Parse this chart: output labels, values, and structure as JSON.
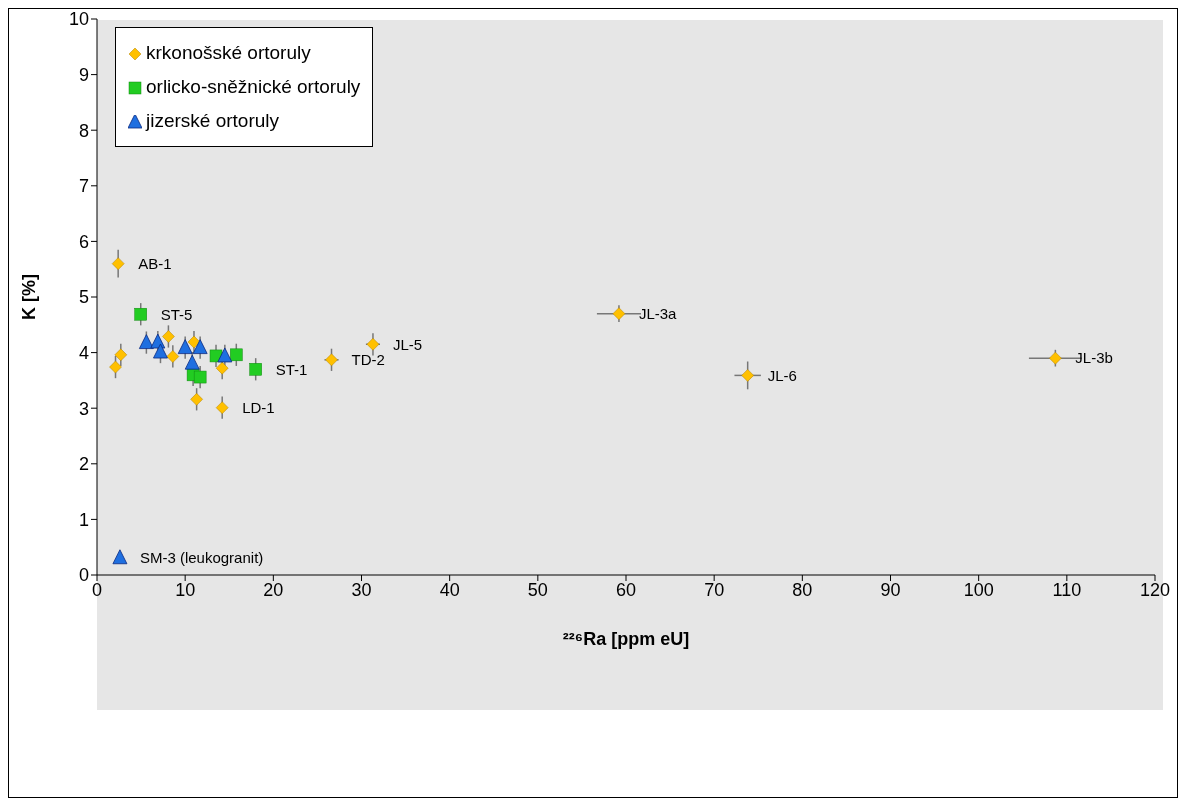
{
  "chart_data": {
    "type": "scatter",
    "xlabel": "²²⁶Ra [ppm eU]",
    "ylabel": "K [%]",
    "xlim": [
      0,
      120
    ],
    "xticks": [
      0,
      10,
      20,
      30,
      40,
      50,
      60,
      70,
      80,
      90,
      100,
      110,
      120
    ],
    "ylim": [
      0,
      10
    ],
    "yticks": [
      0,
      1,
      2,
      3,
      4,
      5,
      6,
      7,
      8,
      9,
      10
    ],
    "grid": false,
    "legend": "top left",
    "series": [
      {
        "name": "krkonošské ortoruly",
        "color": "#ffc000",
        "marker": "diamond",
        "x": [
          2.4,
          2.7,
          2.1,
          8.1,
          8.6,
          11.0,
          14.2,
          11.3,
          14.2,
          26.6,
          31.3,
          59.2,
          73.8,
          108.7
        ],
        "values": [
          5.6,
          3.96,
          3.74,
          4.29,
          3.93,
          4.19,
          3.72,
          3.16,
          3.01,
          3.87,
          4.15,
          4.7,
          3.59,
          3.9
        ],
        "errors": [
          0.25,
          0.2,
          0.2,
          0.2,
          0.2,
          0.2,
          0.2,
          0.2,
          0.2,
          0.2,
          0.2,
          0.15,
          0.25,
          0.15
        ],
        "xerrors": [
          null,
          null,
          null,
          null,
          null,
          null,
          null,
          null,
          null,
          0.8,
          0.8,
          2.5,
          1.5,
          3
        ]
      },
      {
        "name": "orlicko-sněžnické ortoruly",
        "color": "#22cc22",
        "marker": "square",
        "x": [
          4.96,
          13.5,
          15.8,
          10.9,
          11.7,
          18.0
        ],
        "values": [
          4.69,
          3.94,
          3.96,
          3.6,
          3.56,
          3.7
        ],
        "errors": [
          0.2,
          0.2,
          0.2,
          0.2,
          0.2,
          0.2
        ]
      },
      {
        "name": "jizerské ortoruly",
        "color": "#1f6fe0",
        "marker": "triangle",
        "x": [
          5.6,
          6.9,
          7.2,
          10.0,
          11.7,
          10.8,
          14.5,
          2.6
        ],
        "values": [
          4.18,
          4.19,
          4.01,
          4.09,
          4.09,
          3.81,
          3.94,
          0.31
        ],
        "errors": [
          0.2,
          0.2,
          0.2,
          0.2,
          0.2,
          0.2,
          0.2,
          null
        ]
      }
    ],
    "annotations": [
      {
        "text": "AB-1",
        "x": 2.4,
        "y": 5.6
      },
      {
        "text": "ST-5",
        "x": 4.96,
        "y": 4.69
      },
      {
        "text": "ST-1",
        "x": 18.0,
        "y": 3.7
      },
      {
        "text": "LD-1",
        "x": 14.2,
        "y": 3.01
      },
      {
        "text": "TD-2",
        "x": 26.6,
        "y": 3.87
      },
      {
        "text": "JL-5",
        "x": 31.3,
        "y": 4.15
      },
      {
        "text": "JL-3a",
        "x": 59.2,
        "y": 4.7
      },
      {
        "text": "JL-6",
        "x": 73.8,
        "y": 3.59
      },
      {
        "text": "JL-3b",
        "x": 108.7,
        "y": 3.9
      },
      {
        "text": "SM-3 (leukogranit)",
        "x": 2.6,
        "y": 0.31
      }
    ]
  }
}
